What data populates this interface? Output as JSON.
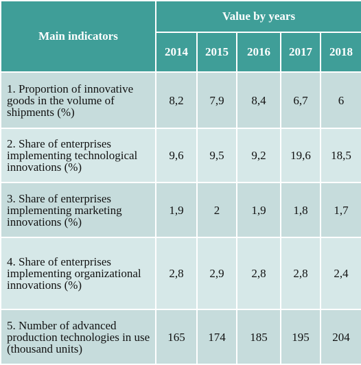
{
  "table": {
    "header": {
      "indicator_label": "Main indicators",
      "group_label": "Value by years",
      "years": [
        "2014",
        "2015",
        "2016",
        "2017",
        "2018"
      ]
    },
    "rows": [
      {
        "indicator": "1. Proportion of innovative goods in the volume of shipments (%)",
        "values": [
          "8,2",
          "7,9",
          "8,4",
          "6,7",
          "6"
        ]
      },
      {
        "indicator": "2. Share of enterprises implementing technological innovations (%)",
        "values": [
          "9,6",
          "9,5",
          "9,2",
          "19,6",
          "18,5"
        ]
      },
      {
        "indicator": "3. Share of enterprises implementing marketing innovations (%)",
        "values": [
          "1,9",
          "2",
          "1,9",
          "1,8",
          "1,7"
        ]
      },
      {
        "indicator": "4. Share of enterprises implementing organizational innovations (%)",
        "values": [
          "2,8",
          "2,9",
          "2,8",
          "2,8",
          "2,4"
        ]
      },
      {
        "indicator": "5. Number of advanced production technologies in use (thousand units)",
        "values": [
          "165",
          "174",
          "185",
          "195",
          "204"
        ]
      }
    ],
    "colors": {
      "header_bg": "#3f9e98",
      "row_bg_a": "#c6dcdc",
      "row_bg_b": "#d6e8e8",
      "border": "#ffffff"
    }
  }
}
